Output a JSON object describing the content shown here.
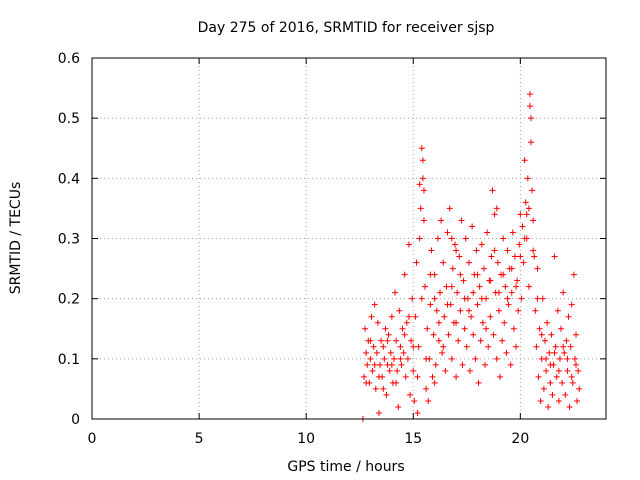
{
  "chart_data": {
    "type": "scatter",
    "title": "Day 275 of 2016, SRMTID for receiver sjsp",
    "xlabel": "GPS time / hours",
    "ylabel": "SRMTID / TECUs",
    "xlim": [
      0,
      24
    ],
    "ylim": [
      0,
      0.6
    ],
    "xticks": [
      "0",
      "5",
      "10",
      "15",
      "20"
    ],
    "yticks": [
      "0",
      "0.1",
      "0.2",
      "0.3",
      "0.4",
      "0.5",
      "0.6"
    ],
    "xtick_values": [
      0,
      5,
      10,
      15,
      20
    ],
    "ytick_values": [
      0,
      0.1,
      0.2,
      0.3,
      0.4,
      0.5,
      0.6
    ],
    "grid": true,
    "marker": "+",
    "color": "#ff0000",
    "series": [
      {
        "points": [
          [
            12.65,
            0.0
          ],
          [
            12.7,
            0.07
          ],
          [
            12.75,
            0.15
          ],
          [
            12.8,
            0.11
          ],
          [
            12.85,
            0.09
          ],
          [
            12.9,
            0.13
          ],
          [
            12.95,
            0.06
          ],
          [
            13.0,
            0.1
          ],
          [
            13.05,
            0.17
          ],
          [
            13.1,
            0.08
          ],
          [
            13.15,
            0.12
          ],
          [
            13.2,
            0.19
          ],
          [
            13.25,
            0.05
          ],
          [
            13.3,
            0.11
          ],
          [
            13.35,
            0.16
          ],
          [
            13.4,
            0.01
          ],
          [
            13.45,
            0.09
          ],
          [
            13.5,
            0.13
          ],
          [
            13.55,
            0.07
          ],
          [
            13.6,
            0.12
          ],
          [
            13.65,
            0.1
          ],
          [
            13.7,
            0.15
          ],
          [
            13.75,
            0.04
          ],
          [
            13.8,
            0.09
          ],
          [
            13.85,
            0.14
          ],
          [
            13.9,
            0.08
          ],
          [
            13.95,
            0.11
          ],
          [
            14.0,
            0.17
          ],
          [
            14.05,
            0.06
          ],
          [
            14.1,
            0.1
          ],
          [
            14.15,
            0.21
          ],
          [
            14.2,
            0.13
          ],
          [
            14.25,
            0.08
          ],
          [
            14.3,
            0.02
          ],
          [
            14.35,
            0.18
          ],
          [
            14.4,
            0.12
          ],
          [
            14.45,
            0.09
          ],
          [
            14.5,
            0.15
          ],
          [
            14.55,
            0.11
          ],
          [
            14.6,
            0.24
          ],
          [
            14.65,
            0.07
          ],
          [
            14.7,
            0.16
          ],
          [
            14.75,
            0.1
          ],
          [
            14.8,
            0.29
          ],
          [
            14.85,
            0.04
          ],
          [
            14.9,
            0.13
          ],
          [
            14.95,
            0.2
          ],
          [
            15.0,
            0.08
          ],
          [
            15.05,
            0.03
          ],
          [
            15.1,
            0.17
          ],
          [
            15.15,
            0.26
          ],
          [
            15.2,
            0.01
          ],
          [
            15.25,
            0.12
          ],
          [
            15.3,
            0.3
          ],
          [
            15.35,
            0.35
          ],
          [
            15.4,
            0.45
          ],
          [
            15.45,
            0.4
          ],
          [
            15.5,
            0.33
          ],
          [
            15.55,
            0.22
          ],
          [
            15.6,
            0.05
          ],
          [
            15.65,
            0.15
          ],
          [
            15.7,
            0.03
          ],
          [
            15.75,
            0.1
          ],
          [
            15.8,
            0.19
          ],
          [
            15.85,
            0.28
          ],
          [
            15.9,
            0.07
          ],
          [
            15.95,
            0.14
          ],
          [
            16.0,
            0.24
          ],
          [
            16.05,
            0.09
          ],
          [
            16.1,
            0.18
          ],
          [
            16.15,
            0.3
          ],
          [
            16.2,
            0.13
          ],
          [
            16.25,
            0.21
          ],
          [
            16.3,
            0.33
          ],
          [
            16.35,
            0.11
          ],
          [
            16.4,
            0.26
          ],
          [
            16.45,
            0.17
          ],
          [
            16.5,
            0.08
          ],
          [
            16.55,
            0.22
          ],
          [
            16.6,
            0.31
          ],
          [
            16.65,
            0.14
          ],
          [
            16.7,
            0.35
          ],
          [
            16.75,
            0.19
          ],
          [
            16.8,
            0.1
          ],
          [
            16.85,
            0.25
          ],
          [
            16.9,
            0.16
          ],
          [
            16.95,
            0.29
          ],
          [
            17.0,
            0.07
          ],
          [
            17.05,
            0.21
          ],
          [
            17.1,
            0.13
          ],
          [
            17.15,
            0.27
          ],
          [
            17.2,
            0.18
          ],
          [
            17.25,
            0.33
          ],
          [
            17.3,
            0.09
          ],
          [
            17.35,
            0.23
          ],
          [
            17.4,
            0.15
          ],
          [
            17.45,
            0.3
          ],
          [
            17.5,
            0.12
          ],
          [
            17.55,
            0.2
          ],
          [
            17.6,
            0.26
          ],
          [
            17.65,
            0.08
          ],
          [
            17.7,
            0.17
          ],
          [
            17.75,
            0.32
          ],
          [
            17.8,
            0.14
          ],
          [
            17.85,
            0.24
          ],
          [
            17.9,
            0.1
          ],
          [
            17.95,
            0.28
          ],
          [
            18.0,
            0.19
          ],
          [
            18.05,
            0.06
          ],
          [
            18.1,
            0.22
          ],
          [
            18.15,
            0.13
          ],
          [
            18.2,
            0.29
          ],
          [
            18.25,
            0.16
          ],
          [
            18.3,
            0.25
          ],
          [
            18.35,
            0.09
          ],
          [
            18.4,
            0.2
          ],
          [
            18.45,
            0.31
          ],
          [
            18.5,
            0.12
          ],
          [
            18.55,
            0.23
          ],
          [
            18.6,
            0.17
          ],
          [
            18.65,
            0.27
          ],
          [
            18.7,
            0.38
          ],
          [
            18.75,
            0.14
          ],
          [
            18.8,
            0.34
          ],
          [
            18.85,
            0.21
          ],
          [
            18.9,
            0.1
          ],
          [
            18.95,
            0.26
          ],
          [
            19.0,
            0.18
          ],
          [
            19.05,
            0.07
          ],
          [
            19.1,
            0.24
          ],
          [
            19.15,
            0.13
          ],
          [
            19.2,
            0.3
          ],
          [
            19.25,
            0.16
          ],
          [
            19.3,
            0.22
          ],
          [
            19.35,
            0.11
          ],
          [
            19.4,
            0.28
          ],
          [
            19.45,
            0.19
          ],
          [
            19.5,
            0.25
          ],
          [
            19.55,
            0.09
          ],
          [
            19.6,
            0.21
          ],
          [
            19.65,
            0.31
          ],
          [
            19.7,
            0.15
          ],
          [
            19.75,
            0.27
          ],
          [
            19.8,
            0.12
          ],
          [
            19.85,
            0.23
          ],
          [
            19.9,
            0.18
          ],
          [
            19.95,
            0.29
          ],
          [
            20.0,
            0.34
          ],
          [
            20.05,
            0.2
          ],
          [
            20.1,
            0.32
          ],
          [
            20.15,
            0.26
          ],
          [
            20.2,
            0.43
          ],
          [
            20.25,
            0.36
          ],
          [
            20.3,
            0.3
          ],
          [
            20.35,
            0.4
          ],
          [
            20.4,
            0.22
          ],
          [
            20.45,
            0.54
          ],
          [
            20.5,
            0.5
          ],
          [
            20.55,
            0.38
          ],
          [
            20.6,
            0.33
          ],
          [
            20.65,
            0.27
          ],
          [
            20.7,
            0.18
          ],
          [
            20.75,
            0.12
          ],
          [
            20.8,
            0.25
          ],
          [
            20.85,
            0.07
          ],
          [
            20.9,
            0.15
          ],
          [
            20.95,
            0.03
          ],
          [
            21.0,
            0.1
          ],
          [
            21.05,
            0.2
          ],
          [
            21.1,
            0.05
          ],
          [
            21.15,
            0.13
          ],
          [
            21.2,
            0.08
          ],
          [
            21.25,
            0.16
          ],
          [
            21.3,
            0.02
          ],
          [
            21.35,
            0.11
          ],
          [
            21.4,
            0.06
          ],
          [
            21.45,
            0.14
          ],
          [
            21.5,
            0.04
          ],
          [
            21.55,
            0.09
          ],
          [
            21.6,
            0.27
          ],
          [
            21.65,
            0.12
          ],
          [
            21.7,
            0.07
          ],
          [
            21.75,
            0.18
          ],
          [
            21.8,
            0.03
          ],
          [
            21.85,
            0.1
          ],
          [
            21.9,
            0.15
          ],
          [
            21.95,
            0.06
          ],
          [
            22.0,
            0.21
          ],
          [
            22.05,
            0.11
          ],
          [
            22.1,
            0.04
          ],
          [
            22.15,
            0.13
          ],
          [
            22.2,
            0.08
          ],
          [
            22.25,
            0.17
          ],
          [
            22.3,
            0.02
          ],
          [
            22.35,
            0.12
          ],
          [
            22.4,
            0.19
          ],
          [
            22.45,
            0.06
          ],
          [
            22.5,
            0.24
          ],
          [
            22.55,
            0.1
          ],
          [
            22.6,
            0.14
          ],
          [
            22.65,
            0.03
          ],
          [
            22.7,
            0.08
          ],
          [
            22.75,
            0.05
          ],
          [
            12.8,
            0.06
          ],
          [
            13.0,
            0.13
          ],
          [
            13.2,
            0.09
          ],
          [
            13.4,
            0.07
          ],
          [
            13.6,
            0.05
          ],
          [
            13.8,
            0.13
          ],
          [
            14.0,
            0.09
          ],
          [
            14.2,
            0.06
          ],
          [
            14.4,
            0.1
          ],
          [
            14.6,
            0.14
          ],
          [
            14.8,
            0.17
          ],
          [
            15.0,
            0.12
          ],
          [
            15.2,
            0.07
          ],
          [
            15.4,
            0.2
          ],
          [
            15.6,
            0.1
          ],
          [
            15.8,
            0.24
          ],
          [
            16.0,
            0.2
          ],
          [
            16.2,
            0.16
          ],
          [
            16.4,
            0.12
          ],
          [
            16.6,
            0.19
          ],
          [
            16.8,
            0.22
          ],
          [
            17.0,
            0.16
          ],
          [
            17.2,
            0.24
          ],
          [
            17.4,
            0.2
          ],
          [
            17.6,
            0.18
          ],
          [
            17.8,
            0.21
          ],
          [
            18.0,
            0.24
          ],
          [
            18.2,
            0.2
          ],
          [
            18.4,
            0.15
          ],
          [
            18.6,
            0.23
          ],
          [
            18.8,
            0.28
          ],
          [
            19.0,
            0.21
          ],
          [
            19.2,
            0.24
          ],
          [
            19.4,
            0.2
          ],
          [
            19.6,
            0.25
          ],
          [
            19.8,
            0.22
          ],
          [
            20.0,
            0.27
          ],
          [
            20.2,
            0.3
          ],
          [
            20.4,
            0.35
          ],
          [
            20.6,
            0.28
          ],
          [
            20.8,
            0.2
          ],
          [
            21.0,
            0.14
          ],
          [
            21.2,
            0.1
          ],
          [
            21.4,
            0.09
          ],
          [
            21.6,
            0.11
          ],
          [
            21.8,
            0.08
          ],
          [
            22.0,
            0.12
          ],
          [
            22.2,
            0.1
          ],
          [
            22.4,
            0.07
          ],
          [
            22.6,
            0.09
          ],
          [
            15.45,
            0.43
          ],
          [
            15.5,
            0.38
          ],
          [
            16.0,
            0.06
          ],
          [
            17.0,
            0.28
          ],
          [
            18.9,
            0.35
          ],
          [
            20.45,
            0.52
          ],
          [
            20.5,
            0.46
          ],
          [
            20.3,
            0.34
          ],
          [
            15.3,
            0.39
          ],
          [
            16.8,
            0.3
          ]
        ]
      }
    ]
  }
}
